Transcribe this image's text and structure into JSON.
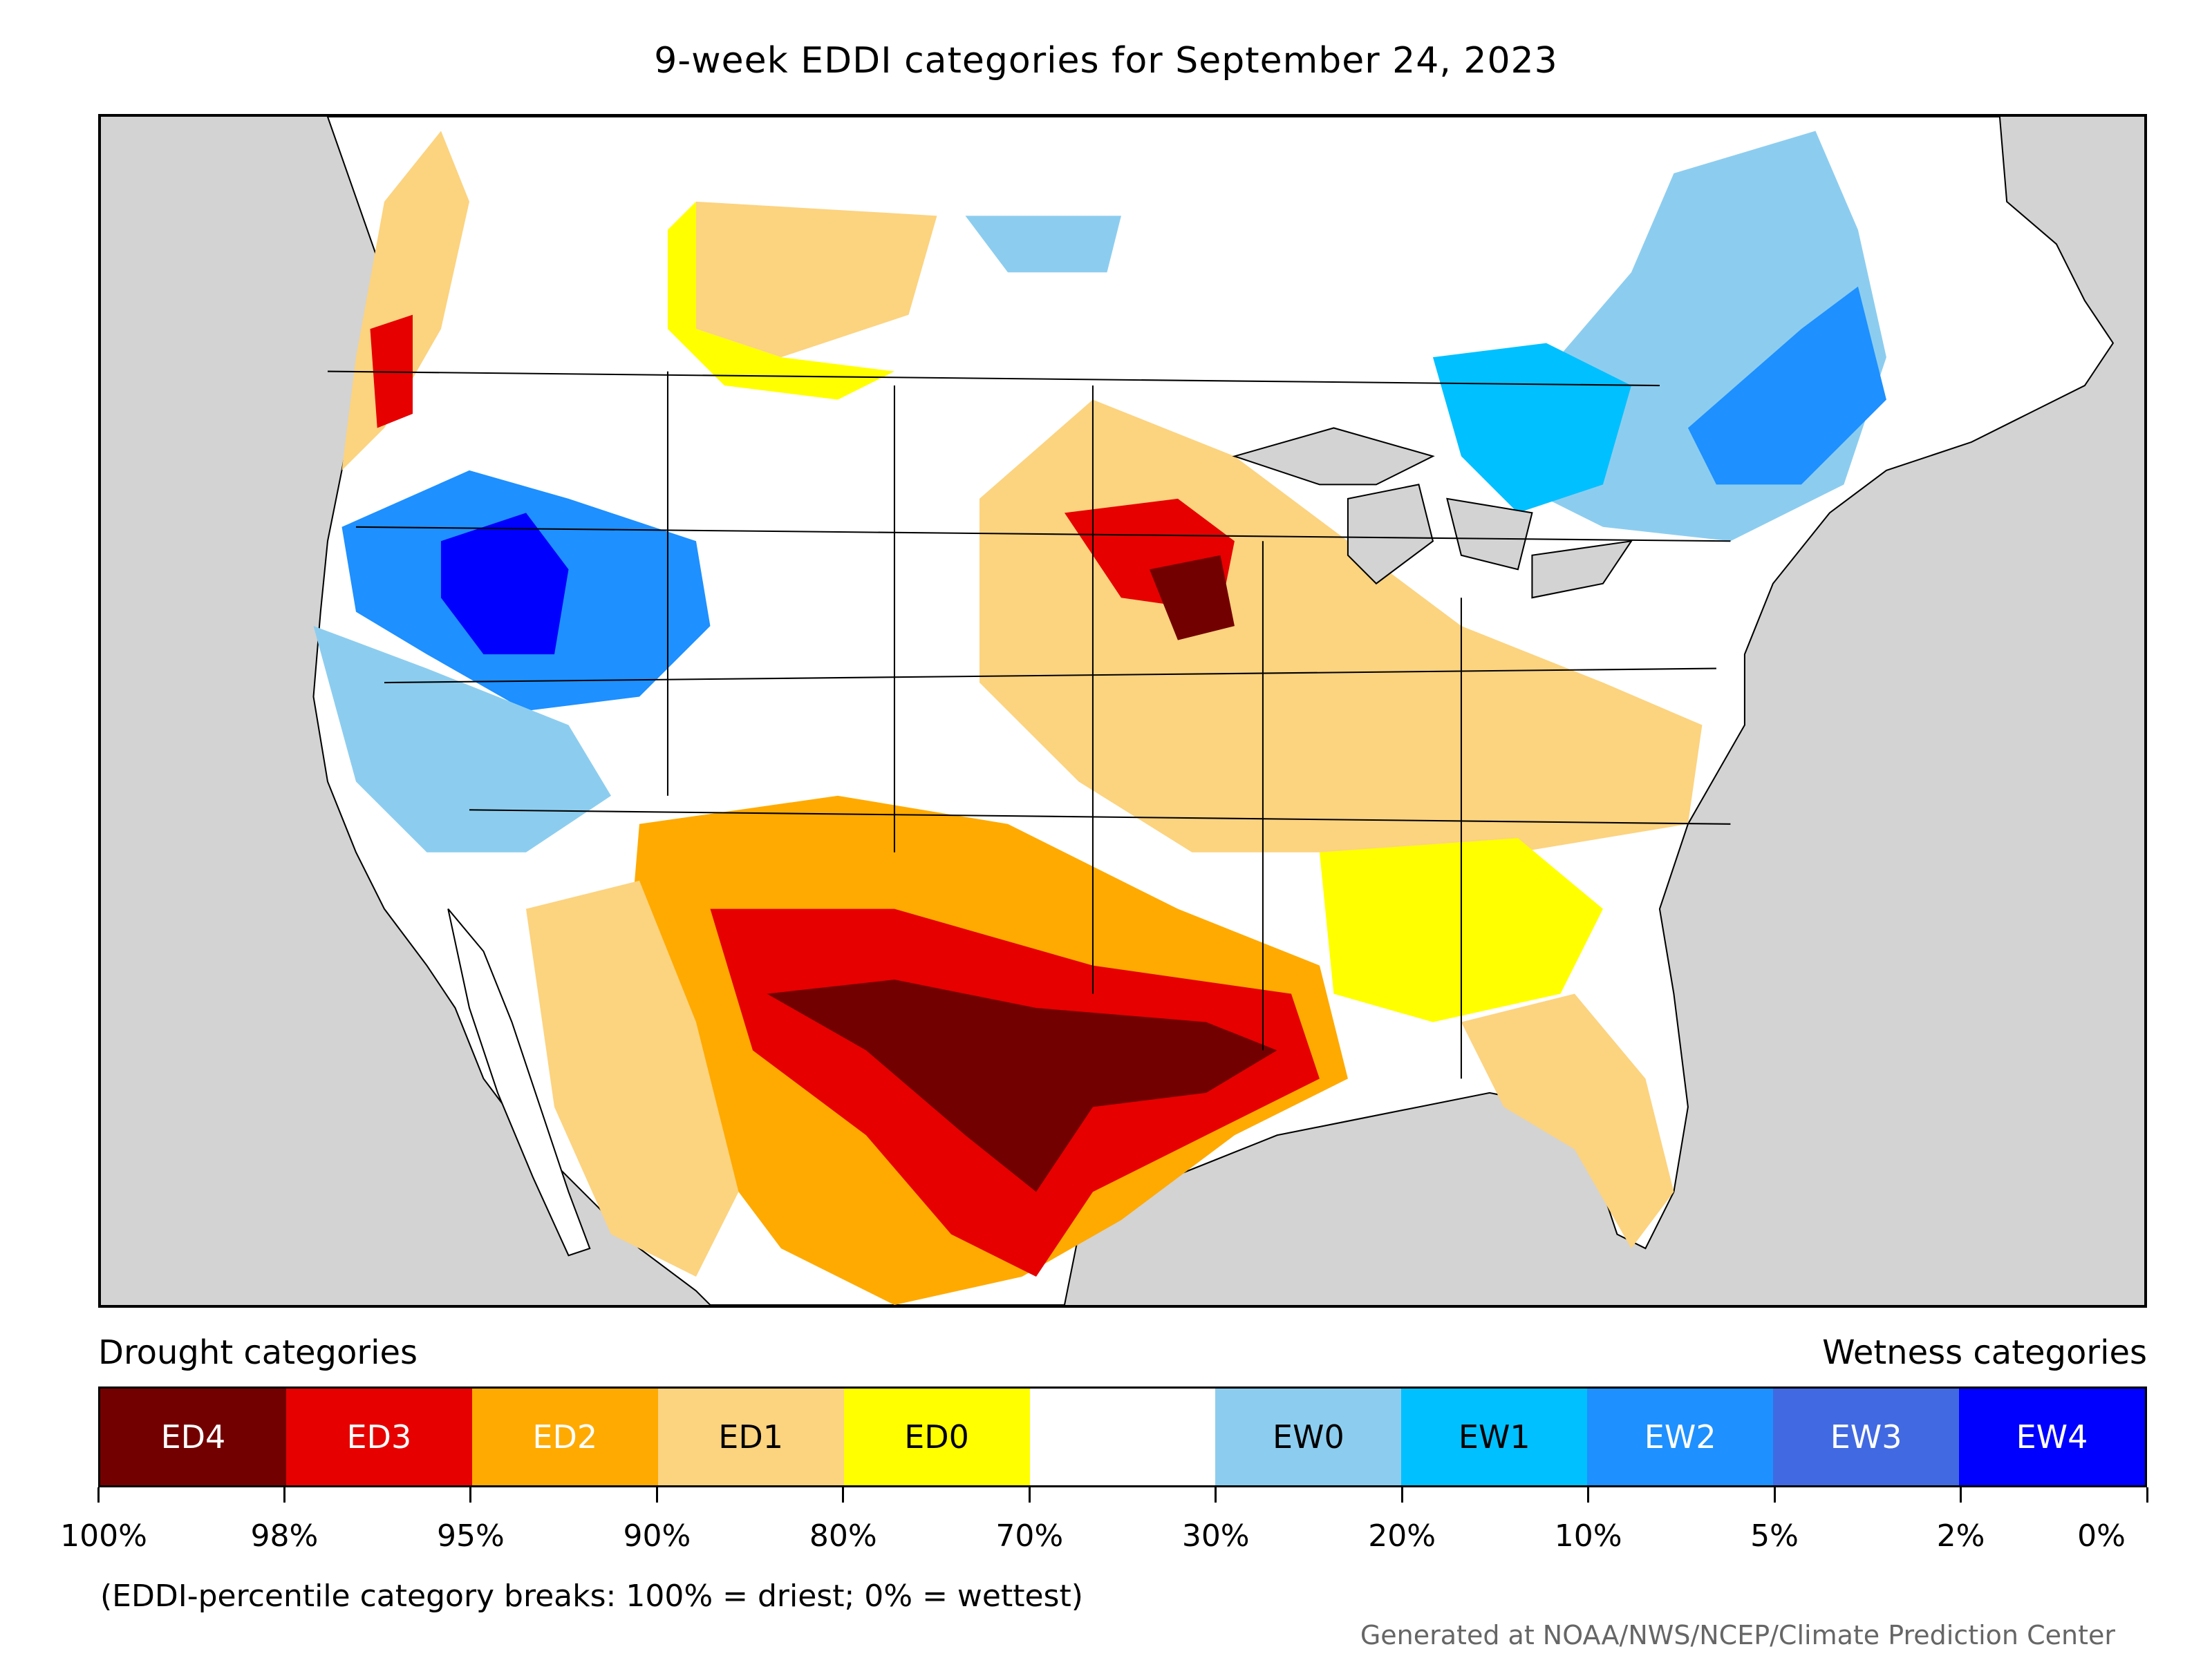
{
  "title": "9-week EDDI categories for September 24, 2023",
  "map": {
    "region": "North America (CONUS and surrounding)",
    "background_color": "#d3d3d3"
  },
  "legend": {
    "drought_heading": "Drought categories",
    "wetness_heading": "Wetness categories",
    "categories": [
      {
        "label": "ED4",
        "color": "#730000",
        "text_color": "#ffffff"
      },
      {
        "label": "ED3",
        "color": "#e60000",
        "text_color": "#ffffff"
      },
      {
        "label": "ED2",
        "color": "#ffaa00",
        "text_color": "#ffffff"
      },
      {
        "label": "ED1",
        "color": "#fcd37f",
        "text_color": "#000000"
      },
      {
        "label": "ED0",
        "color": "#ffff00",
        "text_color": "#000000"
      },
      {
        "label": "",
        "color": "#ffffff",
        "text_color": "#000000"
      },
      {
        "label": "EW0",
        "color": "#8ccdef",
        "text_color": "#000000"
      },
      {
        "label": "EW1",
        "color": "#00c0ff",
        "text_color": "#000000"
      },
      {
        "label": "EW2",
        "color": "#1e90ff",
        "text_color": "#ffffff"
      },
      {
        "label": "EW3",
        "color": "#4169e1",
        "text_color": "#ffffff"
      },
      {
        "label": "EW4",
        "color": "#0000ff",
        "text_color": "#ffffff"
      }
    ],
    "tick_labels": [
      "100%",
      "98%",
      "95%",
      "90%",
      "80%",
      "70%",
      "30%",
      "20%",
      "10%",
      "5%",
      "2%",
      "0%"
    ]
  },
  "note": "(EDDI-percentile category breaks: 100% = driest; 0% = wettest)",
  "credit": "Generated at NOAA/NWS/NCEP/Climate Prediction Center"
}
